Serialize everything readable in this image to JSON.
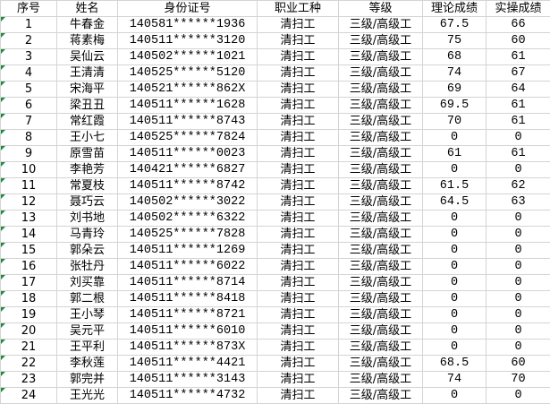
{
  "headers": [
    "序号",
    "姓名",
    "身份证号",
    "职业工种",
    "等级",
    "理论成绩",
    "实操成绩"
  ],
  "rows": [
    [
      "1",
      "牛春金",
      "140581******1936",
      "清扫工",
      "三级/高级工",
      "67.5",
      "66"
    ],
    [
      "2",
      "蒋素梅",
      "140511******3120",
      "清扫工",
      "三级/高级工",
      "75",
      "60"
    ],
    [
      "3",
      "吴仙云",
      "140502******1021",
      "清扫工",
      "三级/高级工",
      "68",
      "61"
    ],
    [
      "4",
      "王清清",
      "140525******5120",
      "清扫工",
      "三级/高级工",
      "74",
      "67"
    ],
    [
      "5",
      "宋海平",
      "140521******862X",
      "清扫工",
      "三级/高级工",
      "69",
      "64"
    ],
    [
      "6",
      "梁丑丑",
      "140511******1628",
      "清扫工",
      "三级/高级工",
      "69.5",
      "61"
    ],
    [
      "7",
      "常红霞",
      "140511******8743",
      "清扫工",
      "三级/高级工",
      "70",
      "61"
    ],
    [
      "8",
      "王小七",
      "140525******7824",
      "清扫工",
      "三级/高级工",
      "0",
      "0"
    ],
    [
      "9",
      "原雪苗",
      "140511******0023",
      "清扫工",
      "三级/高级工",
      "61",
      "61"
    ],
    [
      "10",
      "李艳芳",
      "140421******6827",
      "清扫工",
      "三级/高级工",
      "0",
      "0"
    ],
    [
      "11",
      "常夏枝",
      "140511******8742",
      "清扫工",
      "三级/高级工",
      "61.5",
      "62"
    ],
    [
      "12",
      "聂巧云",
      "140502******3022",
      "清扫工",
      "三级/高级工",
      "64.5",
      "63"
    ],
    [
      "13",
      "刘书地",
      "140502******6322",
      "清扫工",
      "三级/高级工",
      "0",
      "0"
    ],
    [
      "14",
      "马青玲",
      "140525******7828",
      "清扫工",
      "三级/高级工",
      "0",
      "0"
    ],
    [
      "15",
      "郭朵云",
      "140511******1269",
      "清扫工",
      "三级/高级工",
      "0",
      "0"
    ],
    [
      "16",
      "张牡丹",
      "140511******6022",
      "清扫工",
      "三级/高级工",
      "0",
      "0"
    ],
    [
      "17",
      "刘买靠",
      "140511******8714",
      "清扫工",
      "三级/高级工",
      "0",
      "0"
    ],
    [
      "18",
      "郭二根",
      "140511******8418",
      "清扫工",
      "三级/高级工",
      "0",
      "0"
    ],
    [
      "19",
      "王小琴",
      "140511******8721",
      "清扫工",
      "三级/高级工",
      "0",
      "0"
    ],
    [
      "20",
      "吴元平",
      "140511******6010",
      "清扫工",
      "三级/高级工",
      "0",
      "0"
    ],
    [
      "21",
      "王平利",
      "140511******873X",
      "清扫工",
      "三级/高级工",
      "0",
      "0"
    ],
    [
      "22",
      "李秋莲",
      "140511******4421",
      "清扫工",
      "三级/高级工",
      "68.5",
      "60"
    ],
    [
      "23",
      "郭完并",
      "140511******3143",
      "清扫工",
      "三级/高级工",
      "74",
      "70"
    ],
    [
      "24",
      "王光光",
      "140511******4732",
      "清扫工",
      "三级/高级工",
      "0",
      "0"
    ]
  ],
  "colors": {
    "gridline": "#d4d4d4",
    "text_indicator": "#1e8c3a"
  },
  "icons": {
    "cell_marker": "green-triangle-error-indicator"
  }
}
